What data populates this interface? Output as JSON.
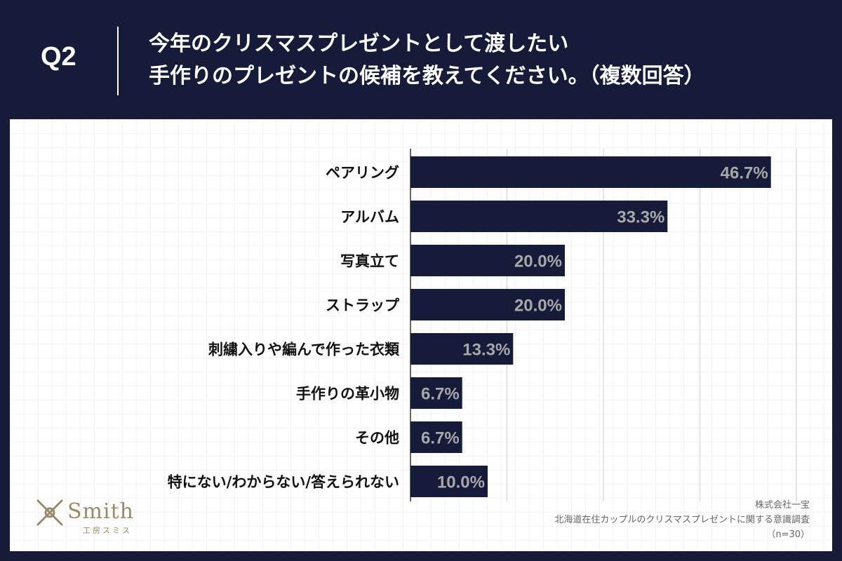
{
  "header": {
    "q_label": "Q2",
    "question_line1": "今年のクリスマスプレゼントとして渡したい",
    "question_line2": "手作りのプレゼントの候補を教えてください。（複数回答）"
  },
  "chart_data": {
    "type": "bar",
    "orientation": "horizontal",
    "title": "今年のクリスマスプレゼントとして渡したい手作りのプレゼントの候補を教えてください。（複数回答）",
    "categories": [
      "ペアリング",
      "アルバム",
      "写真立て",
      "ストラップ",
      "刺繍入りや編んで作った衣類",
      "手作りの革小物",
      "その他",
      "特にない/わからない/答えられない"
    ],
    "values": [
      46.7,
      33.3,
      20.0,
      20.0,
      13.3,
      6.7,
      6.7,
      10.0
    ],
    "value_labels": [
      "46.7%",
      "33.3%",
      "20.0%",
      "20.0%",
      "13.3%",
      "6.7%",
      "6.7%",
      "10.0%"
    ],
    "xlim": [
      0,
      50
    ],
    "unit": "%",
    "bar_color": "#151b38",
    "label_color": "#a8a8a8",
    "grid": true
  },
  "logo": {
    "name": "Smith",
    "sub": "工房スミス"
  },
  "source": {
    "company": "株式会社一宝",
    "survey": "北海道在住カップルのクリスマスプレゼントに関する意識調査",
    "sample": "（n=30）"
  }
}
